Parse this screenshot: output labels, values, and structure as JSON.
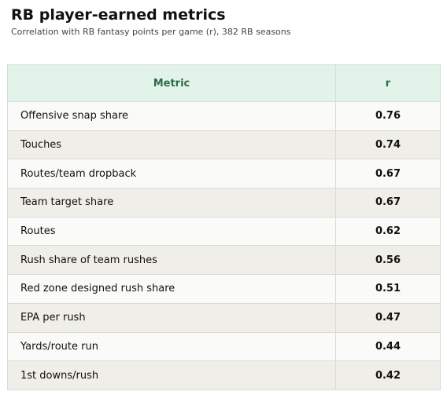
{
  "header": {
    "title": "RB player-earned metrics",
    "subtitle": "Correlation with RB fantasy points per game (r), 382 RB seasons"
  },
  "table": {
    "columns": [
      "Metric",
      "r"
    ],
    "rows": [
      [
        "Offensive snap share",
        "0.76"
      ],
      [
        "Touches",
        "0.74"
      ],
      [
        "Routes/team dropback",
        "0.67"
      ],
      [
        "Team target share",
        "0.67"
      ],
      [
        "Routes",
        "0.62"
      ],
      [
        "Rush share of team rushes",
        "0.56"
      ],
      [
        "Red zone designed rush share",
        "0.51"
      ],
      [
        "EPA per rush",
        "0.47"
      ],
      [
        "Yards/route run",
        "0.44"
      ],
      [
        "1st downs/rush",
        "0.42"
      ]
    ]
  }
}
